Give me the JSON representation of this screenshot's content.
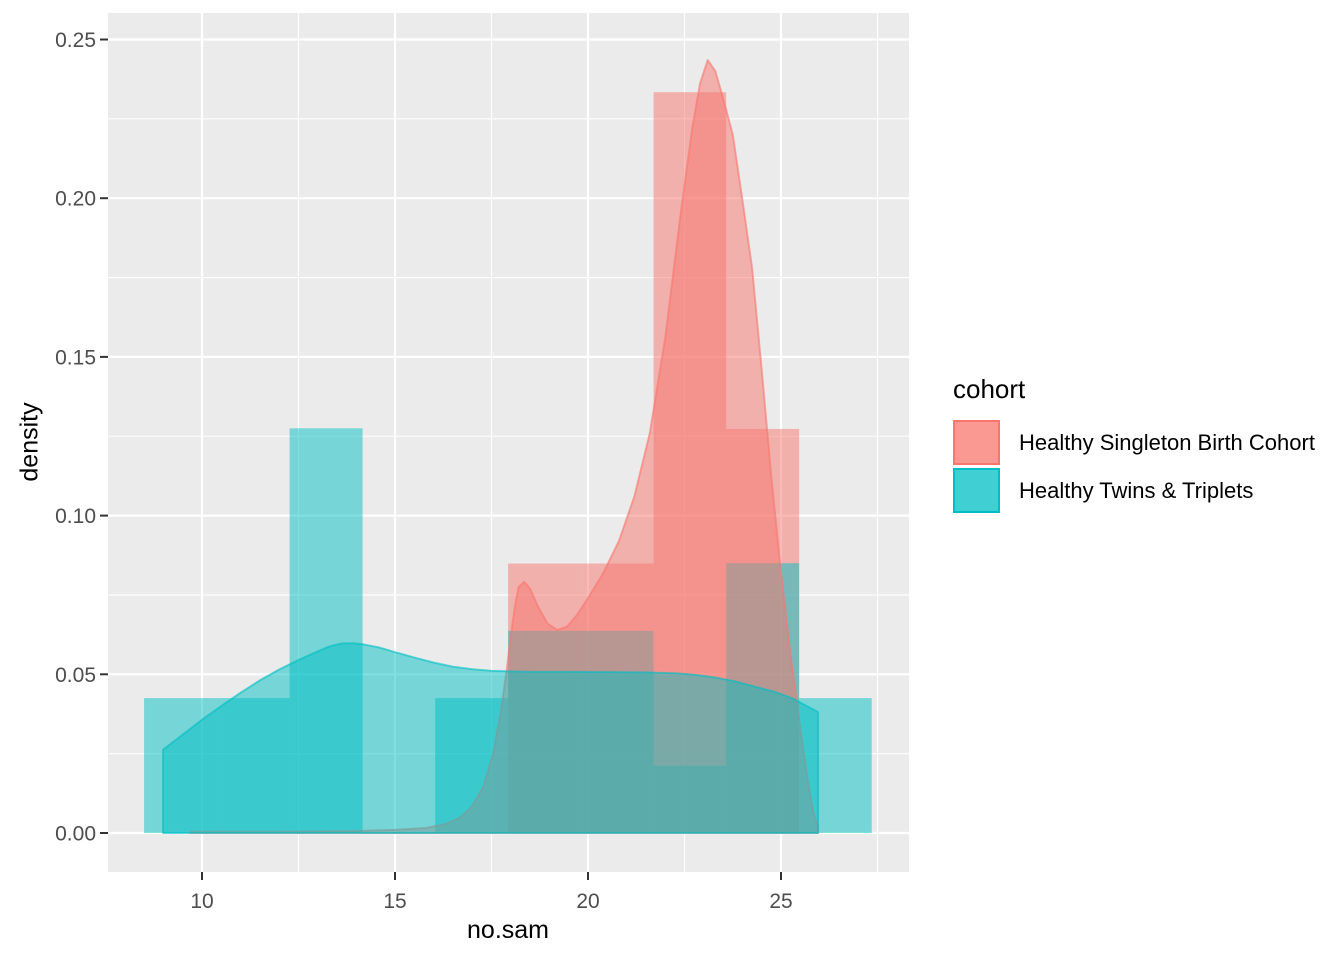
{
  "chart_data": {
    "type": "histogram+density",
    "title": "",
    "xlabel": "no.sam",
    "ylabel": "density",
    "xlim": [
      7.56,
      28.31
    ],
    "ylim": [
      -0.0123,
      0.2583
    ],
    "grid": true,
    "panel_bg": "#EBEBEB",
    "grid_color": "#FFFFFF",
    "tick_mark_color": "#333333",
    "tick_label_color": "#4D4D4D",
    "x_ticks": {
      "values": [
        10,
        15,
        20,
        25
      ],
      "labels": [
        "10",
        "15",
        "20",
        "25"
      ]
    },
    "y_ticks": {
      "values": [
        0,
        0.05,
        0.1,
        0.15,
        0.2,
        0.25
      ],
      "labels": [
        "0.00",
        "0.05",
        "0.10",
        "0.15",
        "0.20",
        "0.25"
      ]
    },
    "x_minor": [
      12.5,
      17.5,
      22.5,
      27.5
    ],
    "y_minor": [
      0.025,
      0.075,
      0.125,
      0.175,
      0.225
    ],
    "fill_alpha": 0.5,
    "legend": {
      "title": "cohort",
      "position": "right",
      "entries": [
        {
          "label": "Healthy Singleton Birth Cohort",
          "color": "#F8766D"
        },
        {
          "label": "Healthy Twins & Triplets",
          "color": "#00BFC4"
        }
      ]
    },
    "series": [
      {
        "name": "Healthy Singleton Birth Cohort",
        "color": "#F8766D",
        "bin_width": 1.885,
        "bins": [
          {
            "x0": 17.93,
            "x1": 19.81,
            "h": 0.0849
          },
          {
            "x0": 19.81,
            "x1": 21.7,
            "h": 0.0849
          },
          {
            "x0": 21.7,
            "x1": 23.58,
            "h": 0.2334
          },
          {
            "x0": 23.58,
            "x1": 25.47,
            "h": 0.1273
          }
        ],
        "density": [
          [
            9.7,
            0.0004
          ],
          [
            12.0,
            0.0004
          ],
          [
            14.0,
            0.0006
          ],
          [
            15.0,
            0.001
          ],
          [
            15.8,
            0.0016
          ],
          [
            16.3,
            0.0028
          ],
          [
            16.7,
            0.005
          ],
          [
            17.0,
            0.0085
          ],
          [
            17.3,
            0.015
          ],
          [
            17.55,
            0.0255
          ],
          [
            17.75,
            0.039
          ],
          [
            17.9,
            0.052
          ],
          [
            18.0,
            0.062
          ],
          [
            18.1,
            0.071
          ],
          [
            18.2,
            0.0775
          ],
          [
            18.35,
            0.0791
          ],
          [
            18.5,
            0.077
          ],
          [
            18.7,
            0.0715
          ],
          [
            18.95,
            0.066
          ],
          [
            19.2,
            0.064
          ],
          [
            19.45,
            0.065
          ],
          [
            19.7,
            0.0685
          ],
          [
            20.0,
            0.074
          ],
          [
            20.4,
            0.082
          ],
          [
            20.8,
            0.092
          ],
          [
            21.2,
            0.106
          ],
          [
            21.6,
            0.126
          ],
          [
            22.0,
            0.156
          ],
          [
            22.4,
            0.195
          ],
          [
            22.7,
            0.222
          ],
          [
            22.9,
            0.236
          ],
          [
            23.1,
            0.2435
          ],
          [
            23.3,
            0.24
          ],
          [
            23.5,
            0.2315
          ],
          [
            23.75,
            0.22
          ],
          [
            24.0,
            0.1995
          ],
          [
            24.25,
            0.178
          ],
          [
            24.5,
            0.146
          ],
          [
            24.75,
            0.112
          ],
          [
            25.0,
            0.082
          ],
          [
            25.25,
            0.056
          ],
          [
            25.5,
            0.033
          ],
          [
            25.7,
            0.016
          ],
          [
            25.85,
            0.006
          ],
          [
            25.96,
            0.002
          ]
        ]
      },
      {
        "name": "Healthy Twins & Triplets",
        "color": "#00BFC4",
        "bin_width": 1.885,
        "bins": [
          {
            "x0": 8.5,
            "x1": 10.39,
            "h": 0.0425
          },
          {
            "x0": 10.39,
            "x1": 12.27,
            "h": 0.0425
          },
          {
            "x0": 12.27,
            "x1": 14.16,
            "h": 0.1275
          },
          {
            "x0": 16.04,
            "x1": 17.93,
            "h": 0.0425
          },
          {
            "x0": 17.93,
            "x1": 19.81,
            "h": 0.0637
          },
          {
            "x0": 19.81,
            "x1": 21.7,
            "h": 0.0637
          },
          {
            "x0": 21.7,
            "x1": 23.58,
            "h": 0.0212
          },
          {
            "x0": 23.58,
            "x1": 25.47,
            "h": 0.085
          },
          {
            "x0": 25.47,
            "x1": 27.35,
            "h": 0.0425
          }
        ],
        "density": [
          [
            8.99,
            0.0262
          ],
          [
            9.5,
            0.031
          ],
          [
            10.0,
            0.0357
          ],
          [
            10.5,
            0.04
          ],
          [
            11.0,
            0.0442
          ],
          [
            11.5,
            0.0481
          ],
          [
            12.0,
            0.0515
          ],
          [
            12.5,
            0.0545
          ],
          [
            13.0,
            0.0572
          ],
          [
            13.3,
            0.0588
          ],
          [
            13.6,
            0.0597
          ],
          [
            13.9,
            0.0598
          ],
          [
            14.2,
            0.0594
          ],
          [
            14.6,
            0.0584
          ],
          [
            15.0,
            0.057
          ],
          [
            15.5,
            0.0553
          ],
          [
            16.0,
            0.0537
          ],
          [
            16.5,
            0.0524
          ],
          [
            17.0,
            0.0516
          ],
          [
            17.5,
            0.0511
          ],
          [
            18.0,
            0.0509
          ],
          [
            18.5,
            0.0508
          ],
          [
            19.5,
            0.0508
          ],
          [
            20.5,
            0.0507
          ],
          [
            21.5,
            0.0506
          ],
          [
            22.3,
            0.0503
          ],
          [
            22.8,
            0.0498
          ],
          [
            23.3,
            0.049
          ],
          [
            23.8,
            0.0478
          ],
          [
            24.3,
            0.0462
          ],
          [
            24.8,
            0.0446
          ],
          [
            25.3,
            0.0424
          ],
          [
            25.7,
            0.0398
          ],
          [
            25.96,
            0.0381
          ]
        ]
      }
    ]
  }
}
